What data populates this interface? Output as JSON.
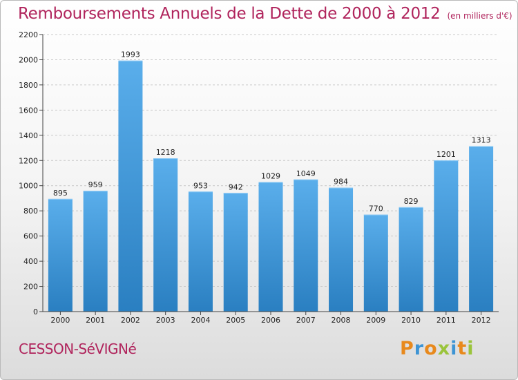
{
  "header": {
    "title": "Remboursements Annuels de la Dette de 2000 à 2012",
    "unit": "(en milliers d'€)"
  },
  "footer": {
    "commune": "CESSON-SéVIGNé",
    "brand": "Proxiti"
  },
  "colors": {
    "title": "#b0245c",
    "bar_top": "#5aaeeb",
    "bar_bottom": "#2a7fc1",
    "logo_letters": [
      "#e8891c",
      "#3d94d4",
      "#e8891c",
      "#9ac43b",
      "#3d94d4",
      "#e8891c",
      "#9ac43b"
    ]
  },
  "chart_data": {
    "type": "bar",
    "title": "Remboursements Annuels de la Dette de 2000 à 2012",
    "categories": [
      "2000",
      "2001",
      "2002",
      "2003",
      "2004",
      "2005",
      "2006",
      "2007",
      "2008",
      "2009",
      "2010",
      "2011",
      "2012"
    ],
    "values": [
      895,
      959,
      1993,
      1218,
      953,
      942,
      1029,
      1049,
      984,
      770,
      829,
      1201,
      1313
    ],
    "ylim": [
      0,
      2200
    ],
    "yticks": [
      0,
      200,
      400,
      600,
      800,
      1000,
      1200,
      1400,
      1600,
      1800,
      2000,
      2200
    ],
    "grid": "horizontal dashed",
    "legend": "none",
    "data_labels": true
  }
}
